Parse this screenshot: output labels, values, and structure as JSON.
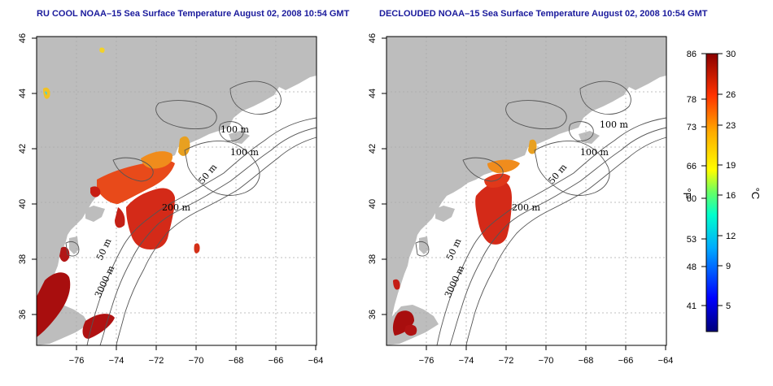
{
  "panels": [
    {
      "title": "RU COOL NOAA–15 Sea Surface Temperature August 02, 2008 10:54 GMT",
      "contour_labels": [
        "100 m",
        "100 m",
        "50 m",
        "200 m",
        "50 m",
        "3000 m"
      ]
    },
    {
      "title": "DECLOUDED NOAA–15 Sea Surface Temperature August 02, 2008 10:54 GMT",
      "contour_labels": [
        "100 m",
        "100 m",
        "50 m",
        "200 m",
        "50 m",
        "3000 m"
      ]
    }
  ],
  "axes": {
    "lon_ticks": [
      "−76",
      "−74",
      "−72",
      "−70",
      "−68",
      "−66",
      "−64"
    ],
    "lat_ticks": [
      "46",
      "44",
      "42",
      "40",
      "38",
      "36"
    ]
  },
  "colorbar": {
    "fahrenheit_ticks": [
      "86",
      "78",
      "73",
      "66",
      "60",
      "53",
      "48",
      "41"
    ],
    "celsius_ticks": [
      "30",
      "26",
      "23",
      "19",
      "16",
      "12",
      "9",
      "5"
    ],
    "fahrenheit_unit": "°F",
    "celsius_unit": "°C"
  },
  "colors": {
    "land": "#bdbdbd",
    "ocean": "#ffffff",
    "title": "#1a1a9c",
    "warm": "#d42a18",
    "hot": "#a80e0e"
  }
}
